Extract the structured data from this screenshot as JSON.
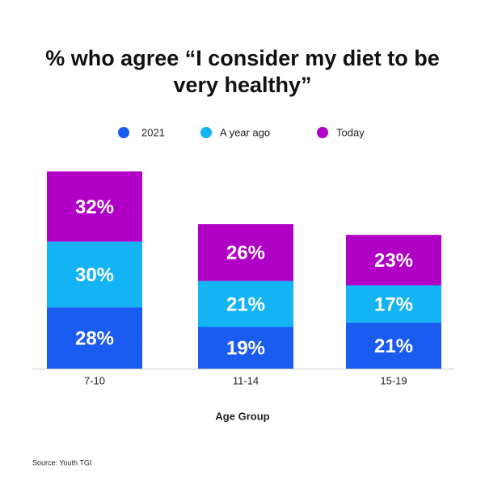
{
  "chart_data": {
    "type": "stacked-bar",
    "title": "% who agree “I consider my diet to be very healthy”",
    "x_label": "Age Group",
    "source": "Source: Youth TGI",
    "categories": [
      "7-10",
      "11-14",
      "15-19"
    ],
    "series": [
      {
        "name": "2021",
        "color": "#1a5cf0",
        "values": [
          28,
          19,
          21
        ],
        "value_labels": [
          "28%",
          "19%",
          "21%"
        ]
      },
      {
        "name": "A year ago",
        "color": "#14b4f4",
        "values": [
          30,
          21,
          17
        ],
        "value_labels": [
          "30%",
          "21%",
          "17%"
        ]
      },
      {
        "name": "Today",
        "color": "#b000c6",
        "values": [
          32,
          26,
          23
        ],
        "value_labels": [
          "32%",
          "26%",
          "23%"
        ]
      }
    ]
  }
}
